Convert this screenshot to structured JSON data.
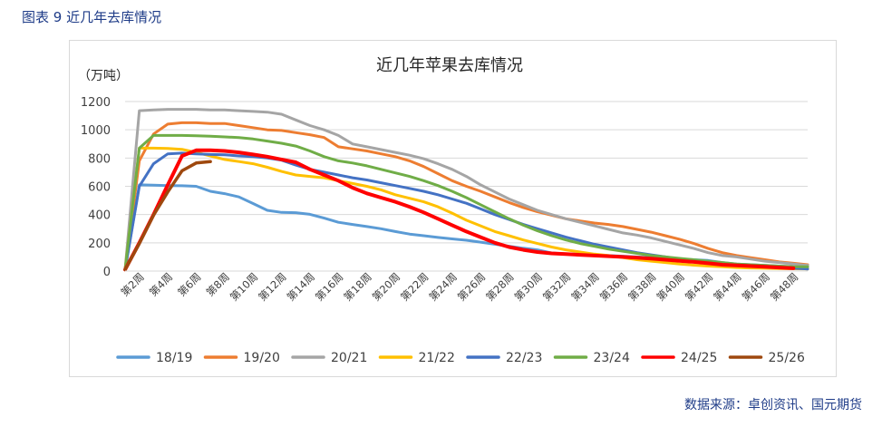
{
  "caption": "图表 9  近几年去库情况",
  "source": "数据来源：卓创资讯、国元期货",
  "chart_data": {
    "type": "line",
    "title": "近几年苹果去库情况",
    "ylabel": "（万吨）",
    "xlabel": "",
    "ylim": [
      0,
      1200
    ],
    "yticks": [
      0,
      200,
      400,
      600,
      800,
      1000,
      1200
    ],
    "grid": "horizontal",
    "legend": "bottom",
    "x": [
      1,
      2,
      3,
      4,
      5,
      6,
      7,
      8,
      9,
      10,
      11,
      12,
      13,
      14,
      15,
      16,
      17,
      18,
      19,
      20,
      21,
      22,
      23,
      24,
      25,
      26,
      27,
      28,
      29,
      30,
      31,
      32,
      33,
      34,
      35,
      36,
      37,
      38,
      39,
      40,
      41,
      42,
      43,
      44,
      45,
      46,
      47,
      48,
      49
    ],
    "xticks": [
      {
        "x": 2,
        "label": "第2周"
      },
      {
        "x": 4,
        "label": "第4周"
      },
      {
        "x": 6,
        "label": "第6周"
      },
      {
        "x": 8,
        "label": "第8周"
      },
      {
        "x": 10,
        "label": "第10周"
      },
      {
        "x": 12,
        "label": "第12周"
      },
      {
        "x": 14,
        "label": "第14周"
      },
      {
        "x": 16,
        "label": "第16周"
      },
      {
        "x": 18,
        "label": "第18周"
      },
      {
        "x": 20,
        "label": "第20周"
      },
      {
        "x": 22,
        "label": "第22周"
      },
      {
        "x": 24,
        "label": "第24周"
      },
      {
        "x": 26,
        "label": "第26周"
      },
      {
        "x": 28,
        "label": "第28周"
      },
      {
        "x": 30,
        "label": "第30周"
      },
      {
        "x": 32,
        "label": "第32周"
      },
      {
        "x": 34,
        "label": "第34周"
      },
      {
        "x": 36,
        "label": "第36周"
      },
      {
        "x": 38,
        "label": "第38周"
      },
      {
        "x": 40,
        "label": "第40周"
      },
      {
        "x": 42,
        "label": "第42周"
      },
      {
        "x": 44,
        "label": "第44周"
      },
      {
        "x": 46,
        "label": "第46周"
      },
      {
        "x": 48,
        "label": "第48周"
      }
    ],
    "series": [
      {
        "name": "18/19",
        "color": "#5b9bd5",
        "width": 3,
        "values": [
          10,
          610,
          608,
          605,
          604,
          600,
          565,
          548,
          525,
          478,
          430,
          415,
          413,
          402,
          375,
          345,
          330,
          315,
          300,
          280,
          262,
          250,
          238,
          228,
          218,
          205,
          190,
          176,
          162,
          150,
          128,
          122,
          118,
          115,
          110,
          105,
          100,
          95,
          90,
          85,
          80,
          75,
          60,
          50,
          45,
          40,
          35,
          30,
          28
        ]
      },
      {
        "name": "19/20",
        "color": "#ed7d31",
        "width": 3,
        "values": [
          10,
          780,
          970,
          1040,
          1050,
          1050,
          1045,
          1045,
          1030,
          1015,
          1000,
          995,
          980,
          965,
          945,
          880,
          865,
          850,
          830,
          810,
          780,
          740,
          690,
          640,
          600,
          565,
          525,
          485,
          450,
          420,
          395,
          370,
          355,
          340,
          330,
          315,
          295,
          275,
          250,
          225,
          195,
          160,
          130,
          110,
          95,
          80,
          65,
          55,
          45
        ]
      },
      {
        "name": "20/21",
        "color": "#a5a5a5",
        "width": 3,
        "values": [
          10,
          1135,
          1140,
          1145,
          1145,
          1145,
          1140,
          1140,
          1135,
          1130,
          1125,
          1110,
          1070,
          1030,
          1000,
          960,
          900,
          880,
          860,
          840,
          820,
          795,
          760,
          720,
          670,
          610,
          560,
          510,
          470,
          430,
          400,
          370,
          345,
          320,
          295,
          270,
          255,
          235,
          210,
          185,
          160,
          130,
          110,
          100,
          85,
          70,
          60,
          50,
          40
        ]
      },
      {
        "name": "21/22",
        "color": "#ffc000",
        "width": 3,
        "values": [
          10,
          870,
          870,
          868,
          862,
          840,
          815,
          790,
          775,
          760,
          735,
          705,
          680,
          670,
          660,
          640,
          620,
          600,
          575,
          540,
          515,
          490,
          455,
          410,
          360,
          320,
          280,
          250,
          220,
          195,
          170,
          150,
          135,
          120,
          110,
          95,
          80,
          70,
          60,
          50,
          42,
          35,
          30,
          25,
          22,
          20,
          18,
          16,
          15
        ]
      },
      {
        "name": "22/23",
        "color": "#4472c4",
        "width": 3,
        "values": [
          10,
          600,
          760,
          830,
          835,
          830,
          825,
          823,
          815,
          810,
          800,
          785,
          750,
          720,
          700,
          680,
          660,
          645,
          625,
          605,
          585,
          565,
          540,
          510,
          480,
          440,
          400,
          365,
          330,
          300,
          270,
          240,
          215,
          190,
          170,
          150,
          130,
          115,
          100,
          85,
          70,
          60,
          50,
          42,
          35,
          30,
          25,
          20,
          15
        ]
      },
      {
        "name": "23/24",
        "color": "#70ad47",
        "width": 3,
        "values": [
          10,
          870,
          960,
          960,
          960,
          958,
          955,
          950,
          945,
          935,
          920,
          905,
          885,
          850,
          810,
          780,
          765,
          745,
          720,
          695,
          670,
          640,
          605,
          565,
          520,
          470,
          420,
          370,
          325,
          285,
          250,
          220,
          195,
          175,
          155,
          140,
          125,
          110,
          100,
          90,
          80,
          70,
          60,
          50,
          45,
          40,
          35,
          30,
          30
        ]
      },
      {
        "name": "24/25",
        "color": "#ff0000",
        "width": 4,
        "values": [
          10,
          200,
          400,
          610,
          815,
          855,
          855,
          850,
          840,
          825,
          810,
          790,
          770,
          720,
          680,
          640,
          590,
          550,
          520,
          490,
          455,
          415,
          370,
          325,
          280,
          240,
          200,
          170,
          150,
          135,
          125,
          120,
          115,
          110,
          105,
          100,
          95,
          88,
          80,
          72,
          65,
          55,
          45,
          40,
          35,
          30,
          25,
          20,
          null
        ]
      },
      {
        "name": "25/26",
        "color": "#9e480e",
        "width": 3.5,
        "values": [
          10,
          195,
          395,
          560,
          710,
          765,
          775,
          null,
          null,
          null,
          null,
          null,
          null,
          null,
          null,
          null,
          null,
          null,
          null,
          null,
          null,
          null,
          null,
          null,
          null,
          null,
          null,
          null,
          null,
          null,
          null,
          null,
          null,
          null,
          null,
          null,
          null,
          null,
          null,
          null,
          null,
          null,
          null,
          null,
          null,
          null,
          null,
          null,
          null
        ]
      }
    ]
  }
}
